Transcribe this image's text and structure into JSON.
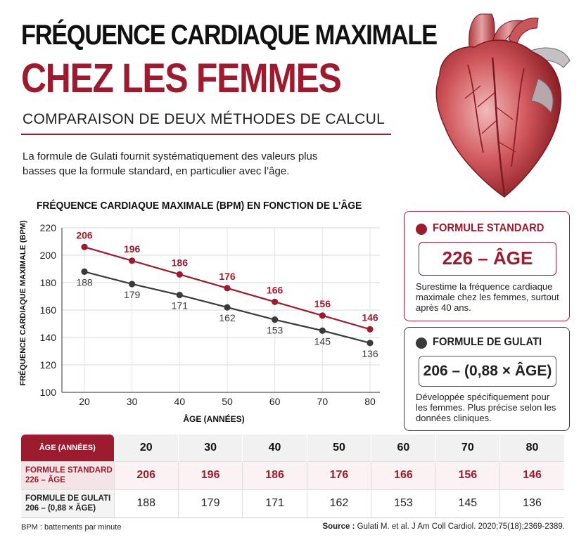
{
  "header": {
    "title_line1": "FRÉQUENCE CARDIAQUE MAXIMALE",
    "title_line2": "CHEZ LES FEMMES",
    "subtitle": "COMPARAISON DE DEUX MÉTHODES DE CALCUL",
    "intro": "La formule de Gulati fournit systématiquement des valeurs plus basses que la formule standard, en particulier avec l’âge."
  },
  "colors": {
    "accent": "#9d1b2e",
    "dark": "#3a3a3a"
  },
  "chart_data": {
    "type": "line",
    "title": "FRÉQUENCE CARDIAQUE MAXIMALE (BPM) EN FONCTION DE L’ÂGE",
    "xlabel": "ÂGE (ANNÉES)",
    "ylabel": "FRÉQUENCE CARDIAQUE MAXIMALE (BPM)",
    "x": [
      20,
      30,
      40,
      50,
      60,
      70,
      80
    ],
    "xlim": [
      20,
      80
    ],
    "ylim": [
      100,
      220
    ],
    "yticks": [
      100,
      120,
      140,
      160,
      180,
      200,
      220
    ],
    "grid": true,
    "series": [
      {
        "key": "standard",
        "color": "#9d1b2e",
        "values": [
          206,
          196,
          186,
          176,
          166,
          156,
          146
        ],
        "label_position": "above"
      },
      {
        "key": "gulati",
        "color": "#3a3a3a",
        "values": [
          188,
          179,
          171,
          162,
          153,
          145,
          136
        ],
        "label_position": "below"
      }
    ]
  },
  "cards": {
    "standard": {
      "heading": "FORMULE STANDARD",
      "formula": "226 – ÂGE",
      "description": "Surestime la fréquence cardiaque maximale chez les femmes, surtout après 40 ans."
    },
    "gulati": {
      "heading": "FORMULE DE GULATI",
      "formula": "206 – (0,88 × ÂGE)",
      "description": "Développée spécifiquement pour les femmes. Plus précise selon les données cliniques."
    }
  },
  "table": {
    "header_label": "ÂGE (ANNÉES)",
    "ages": [
      "20",
      "30",
      "40",
      "50",
      "60",
      "70",
      "80"
    ],
    "rows": [
      {
        "label_line1": "FORMULE STANDARD",
        "label_line2": "226 – ÂGE",
        "values": [
          "206",
          "196",
          "186",
          "176",
          "166",
          "156",
          "146"
        ]
      },
      {
        "label_line1": "FORMULE DE GULATI",
        "label_line2": "206 – (0,88 × ÂGE)",
        "values": [
          "188",
          "179",
          "171",
          "162",
          "153",
          "145",
          "136"
        ]
      }
    ]
  },
  "footer": {
    "note": "BPM : battements par minute",
    "source_label": "Source :",
    "source_text": "Gulati M. et al. J Am Coll Cardiol. 2020;75(18);2369-2389."
  }
}
